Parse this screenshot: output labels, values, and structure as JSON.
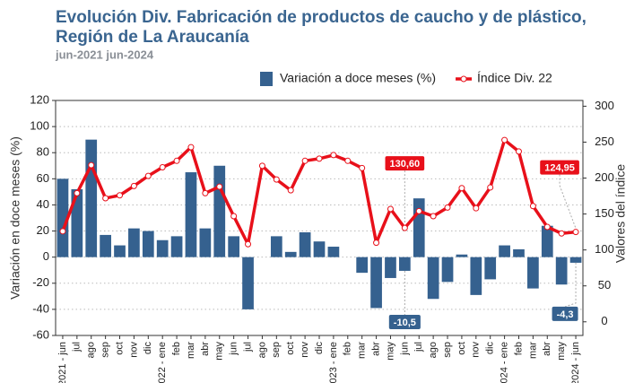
{
  "chart_data": {
    "type": "bar_line",
    "title": "Evolución Div. Fabricación de productos de caucho y de plástico,",
    "title_line2": "Región de La Araucanía",
    "subtitle": "jun-2021 jun-2024",
    "y_label": "Variación en doce meses (%)",
    "y2_label": "Valores del índice",
    "categories": [
      "2021 - jun",
      "jul",
      "ago",
      "sep",
      "oct",
      "nov",
      "dic",
      "2022 - ene",
      "feb",
      "mar",
      "abr",
      "may",
      "jun",
      "jul",
      "ago",
      "sep",
      "oct",
      "nov",
      "dic",
      "2023 - ene",
      "feb",
      "mar",
      "abr",
      "may",
      "jun",
      "jul",
      "ago",
      "sep",
      "oct",
      "nov",
      "dic",
      "2024 - ene",
      "feb",
      "mar",
      "abr",
      "may",
      "2024 - jun"
    ],
    "series": [
      {
        "name": "Variación a doce meses (%)",
        "color": "#35618f",
        "kind": "bar",
        "values": [
          60,
          52,
          90,
          17,
          9,
          22,
          20,
          13,
          16,
          65,
          22,
          70,
          16,
          -40,
          0,
          16,
          4,
          19,
          12,
          8,
          0,
          -12,
          -39,
          -16,
          -10.5,
          45,
          -32,
          -19,
          2,
          -29,
          -17,
          9,
          6,
          -24,
          24,
          -21,
          -4.3
        ],
        "value_labels": [
          null,
          null,
          null,
          null,
          null,
          null,
          null,
          null,
          null,
          null,
          null,
          null,
          null,
          null,
          null,
          null,
          null,
          null,
          null,
          null,
          null,
          null,
          null,
          null,
          "-10,5",
          null,
          null,
          null,
          null,
          null,
          null,
          null,
          null,
          null,
          null,
          null,
          "-4,3"
        ]
      },
      {
        "name": "Índice Div. 22",
        "color": "#e8101a",
        "kind": "line",
        "axis": "y2",
        "values": [
          126,
          179,
          218,
          172,
          176,
          189,
          203,
          215,
          224,
          243,
          179,
          188,
          147,
          108,
          217,
          198,
          183,
          224,
          227,
          232,
          224,
          214,
          110,
          157,
          130.6,
          154,
          147,
          159,
          186,
          158,
          187,
          253,
          237,
          161,
          132,
          123,
          124.95
        ],
        "value_labels": [
          null,
          null,
          null,
          null,
          null,
          null,
          null,
          null,
          null,
          null,
          null,
          null,
          null,
          null,
          null,
          null,
          null,
          null,
          null,
          null,
          null,
          null,
          null,
          null,
          "130,60",
          null,
          null,
          null,
          null,
          null,
          null,
          null,
          null,
          null,
          null,
          null,
          "124,95"
        ]
      }
    ],
    "ylim": [
      -60,
      120
    ],
    "yticks": [
      -60,
      -40,
      -20,
      0,
      20,
      40,
      60,
      80,
      100,
      120
    ],
    "y2lim": [
      -19,
      308
    ],
    "y2ticks": [
      0,
      50,
      100,
      150,
      200,
      250,
      300
    ],
    "grid": true
  }
}
